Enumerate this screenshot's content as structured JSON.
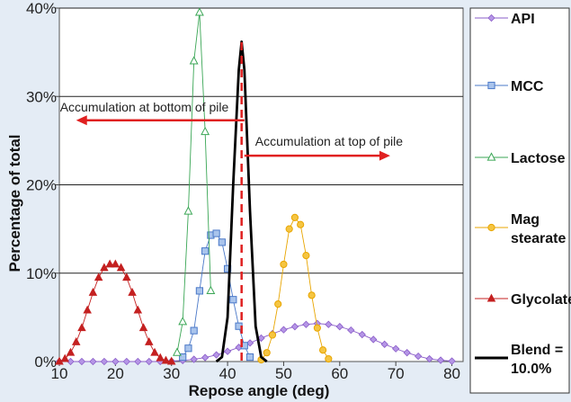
{
  "chart_data": {
    "type": "line",
    "xlabel": "Repose angle (deg)",
    "ylabel": "Percentage of total",
    "xlim": [
      10,
      82
    ],
    "ylim": [
      0,
      40
    ],
    "x_ticks": [
      {
        "value": 10,
        "label": "10"
      },
      {
        "value": 20,
        "label": "20"
      },
      {
        "value": 30,
        "label": "30"
      },
      {
        "value": 40,
        "label": "40"
      },
      {
        "value": 50,
        "label": "50"
      },
      {
        "value": 60,
        "label": "60"
      },
      {
        "value": 70,
        "label": "70"
      },
      {
        "value": 80,
        "label": "80"
      }
    ],
    "y_ticks": [
      {
        "value": 0,
        "label": "0%"
      },
      {
        "value": 10,
        "label": "10%"
      },
      {
        "value": 20,
        "label": "20%"
      },
      {
        "value": 30,
        "label": "30%"
      },
      {
        "value": 40,
        "label": "40%"
      }
    ],
    "grid": "horizontal",
    "legend_position": "right",
    "annotations": [
      {
        "text": "Accumulation at bottom of pile",
        "direction": "left",
        "y": 27.3,
        "x_from": 43,
        "x_to": 13
      },
      {
        "text": "Accumulation at top of pile",
        "direction": "right",
        "y": 23.3,
        "x_from": 43,
        "x_to": 69
      }
    ],
    "reference_line": {
      "x": 42.5,
      "color": "#e02020",
      "style": "dashed"
    },
    "series": [
      {
        "name": "API",
        "color": "#8a5cc8",
        "marker": "diamond",
        "x": [
          10,
          12,
          14,
          16,
          18,
          20,
          22,
          24,
          26,
          28,
          30,
          32,
          34,
          36,
          38,
          40,
          42,
          44,
          46,
          48,
          50,
          52,
          54,
          56,
          58,
          60,
          62,
          64,
          66,
          68,
          70,
          72,
          74,
          76,
          78,
          80
        ],
        "y": [
          0,
          0,
          0,
          0,
          0,
          0,
          0,
          0,
          0,
          0,
          0.05,
          0.12,
          0.25,
          0.45,
          0.75,
          1.15,
          1.6,
          2.1,
          2.65,
          3.15,
          3.6,
          3.95,
          4.2,
          4.3,
          4.2,
          3.95,
          3.55,
          3.05,
          2.5,
          1.95,
          1.45,
          1.0,
          0.6,
          0.3,
          0.15,
          0.05
        ]
      },
      {
        "name": "MCC",
        "color": "#4a78c8",
        "marker": "square",
        "x": [
          32,
          33,
          34,
          35,
          36,
          37,
          38,
          39,
          40,
          41,
          42,
          43,
          44
        ],
        "y": [
          0.5,
          1.5,
          3.5,
          8.0,
          12.5,
          14.3,
          14.5,
          13.5,
          10.5,
          7.0,
          4.0,
          1.8,
          0.5
        ]
      },
      {
        "name": "Lactose",
        "color": "#3aa655",
        "marker": "triangle-open",
        "x": [
          31,
          32,
          33,
          34,
          35,
          36,
          37
        ],
        "y": [
          1.0,
          4.5,
          17.0,
          34.0,
          39.5,
          26.0,
          8.0
        ]
      },
      {
        "name": "Mag stearate",
        "color": "#e8a500",
        "marker": "circle",
        "x": [
          46,
          47,
          48,
          49,
          50,
          51,
          52,
          53,
          54,
          55,
          56,
          57,
          58
        ],
        "y": [
          0.2,
          1.0,
          3.0,
          6.5,
          11.0,
          15.0,
          16.3,
          15.5,
          12.0,
          7.5,
          3.8,
          1.3,
          0.3
        ]
      },
      {
        "name": "Glycolate",
        "color": "#c42020",
        "marker": "triangle",
        "x": [
          10,
          11,
          12,
          13,
          14,
          15,
          16,
          17,
          18,
          19,
          20,
          21,
          22,
          23,
          24,
          25,
          26,
          27,
          28,
          29,
          30
        ],
        "y": [
          0,
          0.3,
          1.0,
          2.2,
          3.8,
          5.8,
          7.8,
          9.5,
          10.6,
          11.0,
          11.0,
          10.6,
          9.5,
          7.8,
          5.8,
          3.8,
          2.2,
          1.0,
          0.4,
          0.1,
          0
        ]
      },
      {
        "name": "Blend = 10.0%",
        "color": "#000000",
        "marker": "none",
        "x": [
          38,
          39,
          40,
          41,
          42,
          42.5,
          43,
          44,
          45,
          46,
          47
        ],
        "y": [
          0,
          0.5,
          5.0,
          20.0,
          33.0,
          36.2,
          33.0,
          17.0,
          4.0,
          0.5,
          0
        ]
      }
    ]
  }
}
